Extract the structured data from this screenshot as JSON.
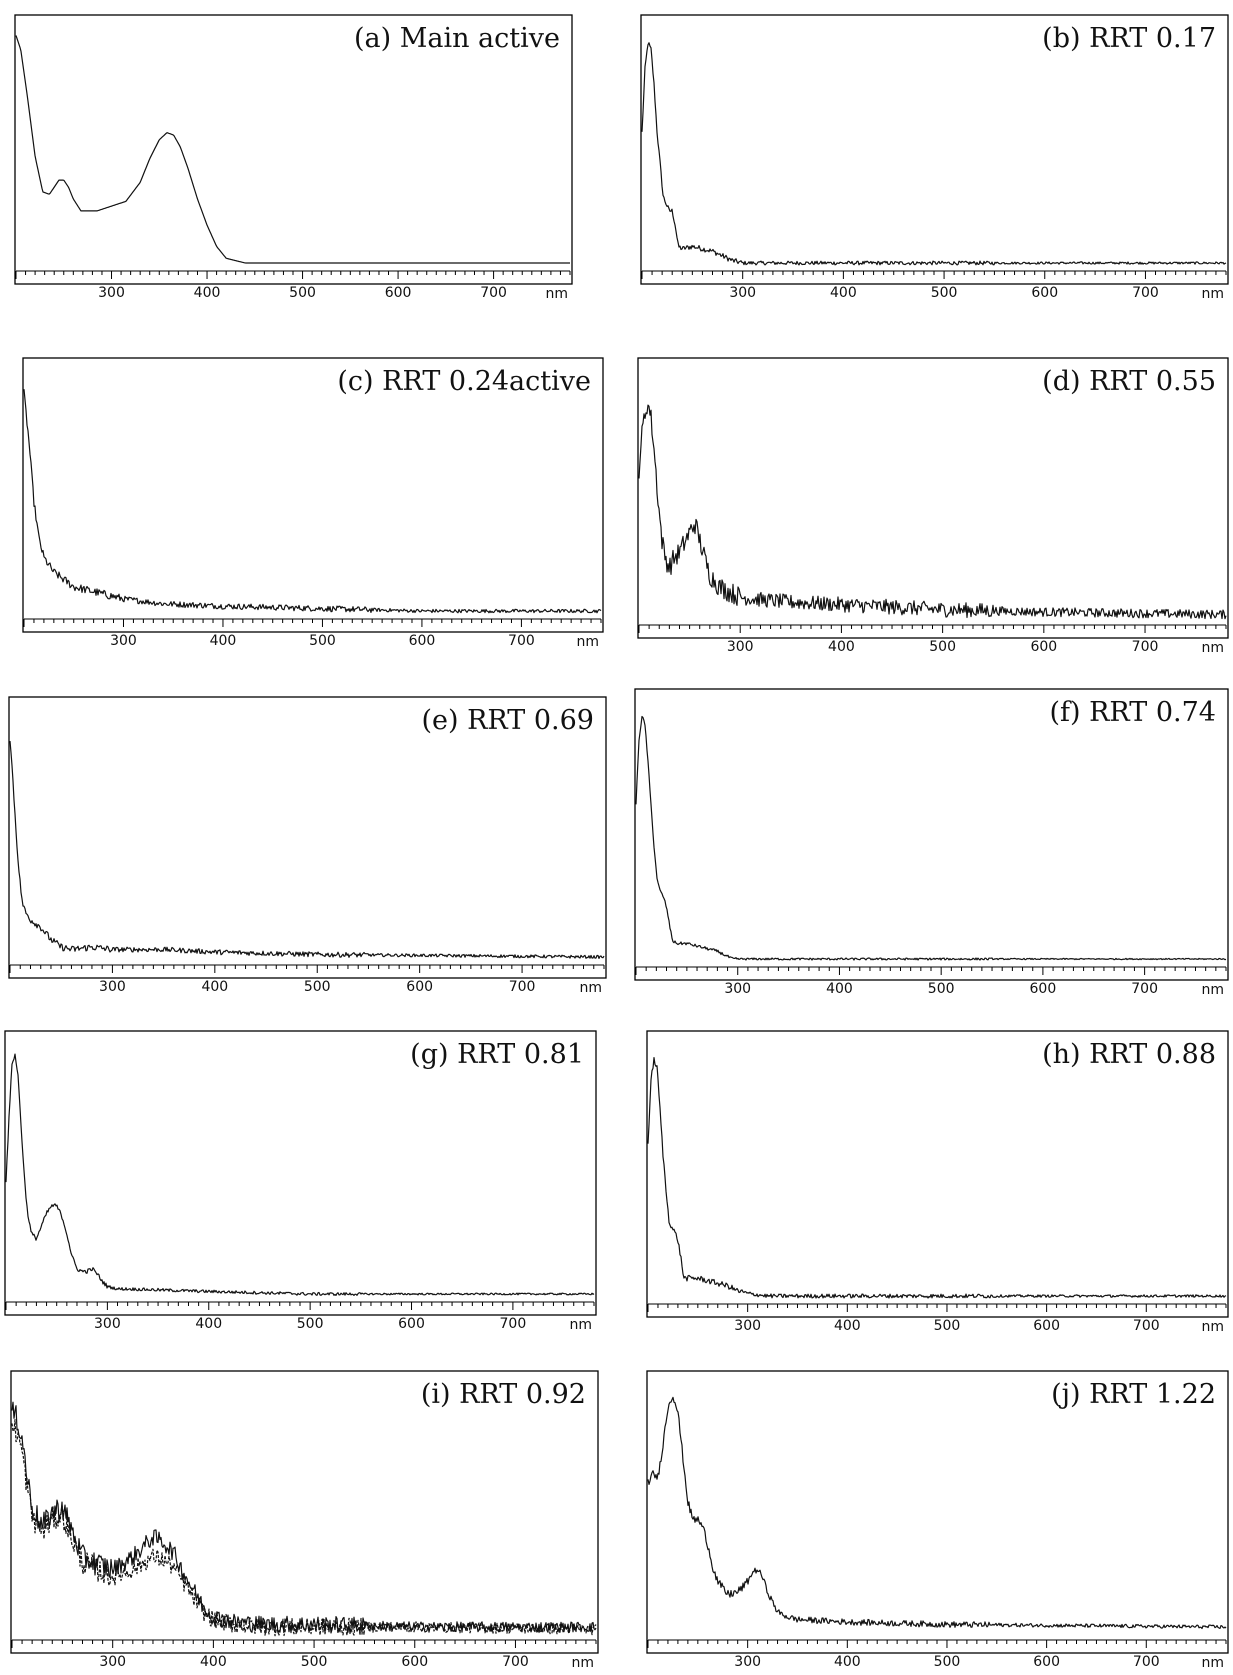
{
  "figure": {
    "x_unit": "nm"
  },
  "chart_data": [
    {
      "id": "a",
      "type": "line",
      "title": "(a) Main active",
      "xlabel": "nm",
      "x_ticks": [
        300,
        400,
        500,
        600,
        700
      ],
      "xlim": [
        200,
        780
      ],
      "ylim": [
        0,
        1
      ],
      "noise": 0,
      "series": [
        {
          "x": [
            200,
            205,
            212,
            220,
            228,
            235,
            240,
            245,
            250,
            255,
            260,
            268,
            275,
            285,
            300,
            315,
            330,
            340,
            350,
            358,
            365,
            372,
            380,
            390,
            400,
            410,
            420,
            430,
            440,
            460,
            500,
            600,
            780
          ],
          "y": [
            0.96,
            0.9,
            0.7,
            0.45,
            0.3,
            0.29,
            0.32,
            0.35,
            0.35,
            0.32,
            0.27,
            0.22,
            0.22,
            0.22,
            0.24,
            0.26,
            0.34,
            0.44,
            0.52,
            0.55,
            0.54,
            0.49,
            0.4,
            0.27,
            0.16,
            0.07,
            0.02,
            0.01,
            0.0,
            0.0,
            0.0,
            0.0,
            0.0
          ]
        }
      ]
    },
    {
      "id": "b",
      "type": "line",
      "title": "(b) RRT 0.17",
      "xlabel": "nm",
      "x_ticks": [
        300,
        400,
        500,
        600,
        700
      ],
      "xlim": [
        200,
        780
      ],
      "ylim": [
        0,
        1
      ],
      "noise": 0.008,
      "series": [
        {
          "x": [
            200,
            203,
            206,
            209,
            212,
            215,
            218,
            221,
            224,
            227,
            230,
            233,
            236,
            240,
            250,
            260,
            270,
            280,
            290,
            300,
            320,
            780
          ],
          "y": [
            0.55,
            0.82,
            0.93,
            0.9,
            0.75,
            0.55,
            0.42,
            0.28,
            0.25,
            0.22,
            0.22,
            0.16,
            0.07,
            0.06,
            0.07,
            0.06,
            0.05,
            0.03,
            0.01,
            0.0,
            0.0,
            0.0
          ]
        }
      ]
    },
    {
      "id": "c",
      "type": "line",
      "title": "(c) RRT 0.24active",
      "xlabel": "nm",
      "x_ticks": [
        300,
        400,
        500,
        600,
        700
      ],
      "xlim": [
        200,
        780
      ],
      "ylim": [
        0,
        1
      ],
      "noise": 0.012,
      "series": [
        {
          "x": [
            200,
            205,
            210,
            215,
            220,
            230,
            240,
            250,
            260,
            280,
            300,
            340,
            400,
            500,
            600,
            780
          ],
          "y": [
            0.9,
            0.7,
            0.45,
            0.3,
            0.22,
            0.16,
            0.13,
            0.1,
            0.09,
            0.07,
            0.05,
            0.03,
            0.02,
            0.01,
            0.0,
            0.0
          ]
        }
      ]
    },
    {
      "id": "d",
      "type": "line",
      "title": "(d) RRT 0.55",
      "xlabel": "nm",
      "x_ticks": [
        300,
        400,
        500,
        600,
        700
      ],
      "xlim": [
        200,
        780
      ],
      "ylim": [
        0,
        1
      ],
      "noise": 0.03,
      "series": [
        {
          "x": [
            200,
            202,
            205,
            208,
            211,
            214,
            217,
            220,
            223,
            226,
            230,
            235,
            240,
            245,
            250,
            255,
            258,
            262,
            266,
            270,
            280,
            290,
            300,
            320,
            350,
            400,
            500,
            600,
            780
          ],
          "y": [
            0.6,
            0.7,
            0.8,
            0.86,
            0.83,
            0.72,
            0.57,
            0.42,
            0.3,
            0.24,
            0.2,
            0.24,
            0.26,
            0.3,
            0.34,
            0.38,
            0.34,
            0.28,
            0.22,
            0.17,
            0.12,
            0.1,
            0.08,
            0.07,
            0.06,
            0.05,
            0.03,
            0.02,
            0.01
          ]
        }
      ]
    },
    {
      "id": "e",
      "type": "line",
      "title": "(e) RRT 0.69",
      "xlabel": "nm",
      "x_ticks": [
        300,
        400,
        500,
        600,
        700
      ],
      "xlim": [
        200,
        780
      ],
      "ylim": [
        0,
        1
      ],
      "noise": 0.01,
      "series": [
        {
          "x": [
            200,
            203,
            206,
            209,
            212,
            215,
            220,
            230,
            240,
            250,
            260,
            280,
            300,
            350,
            400,
            500,
            780
          ],
          "y": [
            0.88,
            0.7,
            0.5,
            0.33,
            0.22,
            0.18,
            0.15,
            0.12,
            0.07,
            0.04,
            0.03,
            0.04,
            0.03,
            0.03,
            0.02,
            0.01,
            0.0
          ]
        }
      ]
    },
    {
      "id": "f",
      "type": "line",
      "title": "(f) RRT 0.74",
      "xlabel": "nm",
      "x_ticks": [
        300,
        400,
        500,
        600,
        700
      ],
      "xlim": [
        200,
        780
      ],
      "ylim": [
        0,
        1
      ],
      "noise": 0.004,
      "series": [
        {
          "x": [
            200,
            203,
            206,
            209,
            212,
            215,
            218,
            221,
            224,
            227,
            230,
            233,
            236,
            240,
            250,
            260,
            270,
            280,
            290,
            295,
            300,
            780
          ],
          "y": [
            0.6,
            0.85,
            0.94,
            0.9,
            0.75,
            0.58,
            0.42,
            0.3,
            0.26,
            0.24,
            0.2,
            0.13,
            0.07,
            0.06,
            0.06,
            0.05,
            0.04,
            0.03,
            0.01,
            0.0,
            0.0,
            0.0
          ]
        }
      ]
    },
    {
      "id": "g",
      "type": "line",
      "title": "(g) RRT 0.81",
      "xlabel": "nm",
      "x_ticks": [
        300,
        400,
        500,
        600,
        700
      ],
      "xlim": [
        200,
        780
      ],
      "ylim": [
        0,
        1
      ],
      "noise": 0.006,
      "series": [
        {
          "x": [
            200,
            203,
            206,
            209,
            212,
            215,
            218,
            221,
            225,
            230,
            235,
            240,
            245,
            250,
            255,
            260,
            265,
            270,
            275,
            280,
            285,
            290,
            295,
            300,
            310,
            320,
            400,
            500,
            780
          ],
          "y": [
            0.45,
            0.7,
            0.92,
            0.95,
            0.86,
            0.66,
            0.47,
            0.33,
            0.24,
            0.22,
            0.27,
            0.32,
            0.35,
            0.35,
            0.31,
            0.24,
            0.15,
            0.1,
            0.09,
            0.09,
            0.1,
            0.08,
            0.05,
            0.03,
            0.02,
            0.02,
            0.01,
            0.0,
            0.0
          ]
        }
      ]
    },
    {
      "id": "h",
      "type": "line",
      "title": "(h) RRT 0.88",
      "xlabel": "nm",
      "x_ticks": [
        300,
        400,
        500,
        600,
        700
      ],
      "xlim": [
        200,
        780
      ],
      "ylim": [
        0,
        1
      ],
      "noise": 0.008,
      "series": [
        {
          "x": [
            200,
            203,
            206,
            209,
            212,
            215,
            218,
            221,
            224,
            227,
            230,
            233,
            236,
            240,
            250,
            260,
            270,
            280,
            290,
            300,
            320,
            780
          ],
          "y": [
            0.6,
            0.85,
            0.93,
            0.9,
            0.74,
            0.56,
            0.42,
            0.3,
            0.27,
            0.25,
            0.22,
            0.15,
            0.07,
            0.07,
            0.07,
            0.06,
            0.05,
            0.04,
            0.02,
            0.01,
            0.0,
            0.0
          ]
        }
      ]
    },
    {
      "id": "i",
      "type": "line",
      "title": "(i) RRT 0.92",
      "xlabel": "nm",
      "x_ticks": [
        300,
        400,
        500,
        600,
        700
      ],
      "xlim": [
        200,
        780
      ],
      "ylim": [
        0,
        1
      ],
      "noise": 0.035,
      "series": [
        {
          "x": [
            200,
            205,
            210,
            215,
            220,
            230,
            240,
            250,
            260,
            270,
            280,
            300,
            320,
            340,
            350,
            360,
            370,
            380,
            390,
            400,
            420,
            450,
            500,
            600,
            780
          ],
          "y": [
            0.88,
            0.85,
            0.78,
            0.62,
            0.5,
            0.42,
            0.48,
            0.5,
            0.4,
            0.3,
            0.28,
            0.25,
            0.3,
            0.38,
            0.36,
            0.32,
            0.24,
            0.17,
            0.1,
            0.06,
            0.04,
            0.03,
            0.03,
            0.02,
            0.02
          ]
        },
        {
          "x": [
            200,
            205,
            210,
            215,
            220,
            230,
            240,
            250,
            260,
            270,
            280,
            300,
            320,
            340,
            350,
            360,
            370,
            380,
            390,
            400,
            420,
            450,
            500,
            600,
            780
          ],
          "y": [
            0.82,
            0.8,
            0.72,
            0.58,
            0.46,
            0.4,
            0.45,
            0.47,
            0.37,
            0.28,
            0.26,
            0.22,
            0.25,
            0.3,
            0.29,
            0.26,
            0.2,
            0.14,
            0.08,
            0.05,
            0.03,
            0.02,
            0.02,
            0.02,
            0.01
          ]
        }
      ]
    },
    {
      "id": "j",
      "type": "line",
      "title": "(j) RRT 1.22",
      "xlabel": "nm",
      "x_ticks": [
        300,
        400,
        500,
        600,
        700
      ],
      "xlim": [
        200,
        780
      ],
      "ylim": [
        0,
        1
      ],
      "noise": 0.012,
      "series": [
        {
          "x": [
            200,
            205,
            210,
            215,
            220,
            225,
            230,
            235,
            240,
            245,
            250,
            255,
            260,
            265,
            270,
            280,
            290,
            300,
            305,
            310,
            315,
            320,
            330,
            340,
            350,
            400,
            500,
            780
          ],
          "y": [
            0.6,
            0.63,
            0.62,
            0.75,
            0.9,
            0.95,
            0.88,
            0.7,
            0.52,
            0.45,
            0.45,
            0.42,
            0.35,
            0.26,
            0.2,
            0.15,
            0.16,
            0.2,
            0.24,
            0.25,
            0.22,
            0.16,
            0.08,
            0.06,
            0.05,
            0.04,
            0.03,
            0.02
          ]
        }
      ]
    }
  ]
}
